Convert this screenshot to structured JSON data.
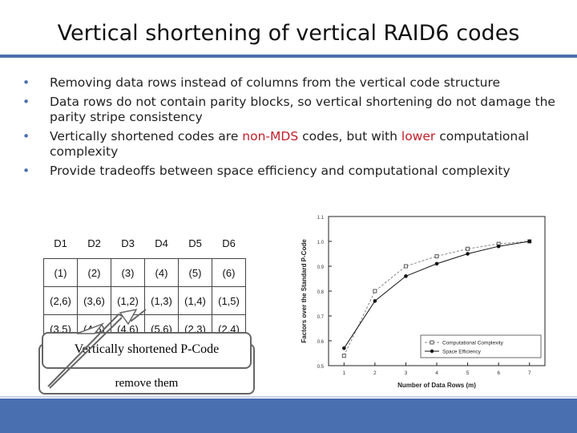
{
  "slide": {
    "title": "Vertical shortening of vertical RAID6 codes",
    "bullets": [
      {
        "pre": "Removing data rows instead of columns from the vertical code structure"
      },
      {
        "pre": "Data rows do not contain parity blocks, so vertical shortening do not damage the parity stripe consistency"
      },
      {
        "pre": "Vertically shortened codes are ",
        "red1": "non-MDS",
        "mid": " codes, but with ",
        "red2": "lower",
        "post": " computational complexity"
      },
      {
        "pre": "Provide tradeoffs between space efficiency and computational complexity"
      }
    ]
  },
  "code_table": {
    "headers": [
      "D1",
      "D2",
      "D3",
      "D4",
      "D5",
      "D6"
    ],
    "rows": [
      [
        "(1)",
        "(2)",
        "(3)",
        "(4)",
        "(5)",
        "(6)"
      ],
      [
        "(2,6)",
        "(3,6)",
        "(1,2)",
        "(1,3)",
        "(1,4)",
        "(1,5)"
      ],
      [
        "(3,5)",
        "(4,5)",
        "(4,6)",
        "(5,6)",
        "(2,3)",
        "(2,4)"
      ]
    ]
  },
  "callouts": {
    "shortened": "Vertically shortened P-Code",
    "remove": "remove them"
  },
  "chart_data": {
    "type": "line",
    "xlabel": "Number of Data Rows (m)",
    "ylabel": "Factors over the Standard P-Code",
    "x": [
      1,
      2,
      3,
      4,
      5,
      6,
      7
    ],
    "xlim": [
      0.5,
      7.5
    ],
    "ylim": [
      0.5,
      1.1
    ],
    "yticks": [
      0.5,
      0.6,
      0.7,
      0.8,
      0.9,
      1.0,
      1.1
    ],
    "series": [
      {
        "name": "Computational Complexity",
        "marker": "open-square",
        "values": [
          0.54,
          0.8,
          0.9,
          0.94,
          0.97,
          0.99,
          1.0
        ]
      },
      {
        "name": "Space Efficiency",
        "marker": "filled-circle",
        "values": [
          0.57,
          0.76,
          0.86,
          0.91,
          0.95,
          0.98,
          1.0
        ]
      }
    ],
    "legend": "bottom-right",
    "grid": false
  }
}
